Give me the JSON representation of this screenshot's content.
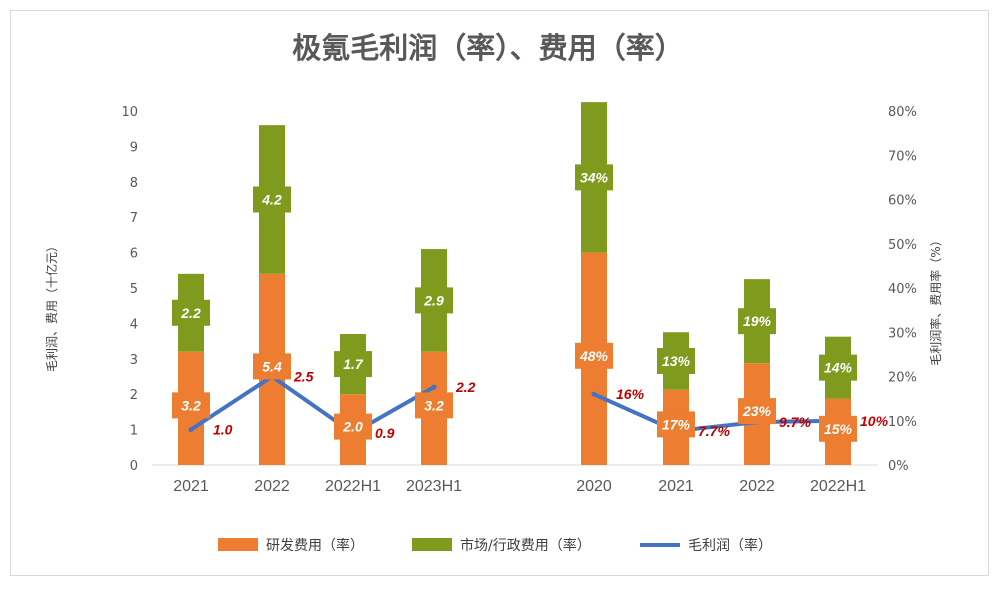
{
  "chart_data": {
    "type": "bar",
    "title": "极氪毛利润（率）、费用（率）",
    "y_left_label": "毛利润、费用（十亿元）",
    "y_right_label": "毛利润率、费用率（%）",
    "y_left_range": [
      0,
      10
    ],
    "y_left_ticks": [
      "0",
      "1",
      "2",
      "3",
      "4",
      "5",
      "6",
      "7",
      "8",
      "9",
      "10"
    ],
    "y_right_range": [
      0,
      0.8
    ],
    "y_right_ticks": [
      "0%",
      "10%",
      "20%",
      "30%",
      "40%",
      "50%",
      "60%",
      "70%",
      "80%"
    ],
    "legend": [
      {
        "label": "研发费用（率）",
        "color": "#ed7d31",
        "kind": "bar"
      },
      {
        "label": "市场/行政费用（率）",
        "color": "#7f9a1d",
        "kind": "bar"
      },
      {
        "label": "毛利润（率）",
        "color": "#4472c4",
        "kind": "line"
      }
    ],
    "groups": [
      {
        "axis": "left",
        "categories": [
          "2021",
          "2022",
          "2022H1",
          "2023H1"
        ],
        "series": [
          {
            "name": "研发费用（率）",
            "values": [
              3.2,
              5.4,
              2.0,
              3.2
            ],
            "labels": [
              "3.2",
              "5.4",
              "2.0",
              "3.2"
            ]
          },
          {
            "name": "市场/行政费用（率）",
            "values": [
              2.2,
              4.2,
              1.7,
              2.9
            ],
            "labels": [
              "2.2",
              "4.2",
              "1.7",
              "2.9"
            ]
          },
          {
            "name": "毛利润（率）",
            "values": [
              1.0,
              2.5,
              0.9,
              2.2
            ],
            "labels": [
              "1.0",
              "2.5",
              "0.9",
              "2.2"
            ]
          }
        ]
      },
      {
        "axis": "right",
        "categories": [
          "2020",
          "2021",
          "2022",
          "2022H1"
        ],
        "series": [
          {
            "name": "研发费用（率）",
            "values": [
              0.48,
              0.17,
              0.23,
              0.15
            ],
            "labels": [
              "48%",
              "17%",
              "23%",
              "15%"
            ]
          },
          {
            "name": "市场/行政费用（率）",
            "values": [
              0.34,
              0.13,
              0.19,
              0.14
            ],
            "labels": [
              "34%",
              "13%",
              "19%",
              "14%"
            ]
          },
          {
            "name": "毛利润（率）",
            "values": [
              0.16,
              0.077,
              0.097,
              0.1
            ],
            "labels": [
              "16%",
              "7.7%",
              "9.7%",
              "10%"
            ]
          }
        ]
      }
    ]
  }
}
